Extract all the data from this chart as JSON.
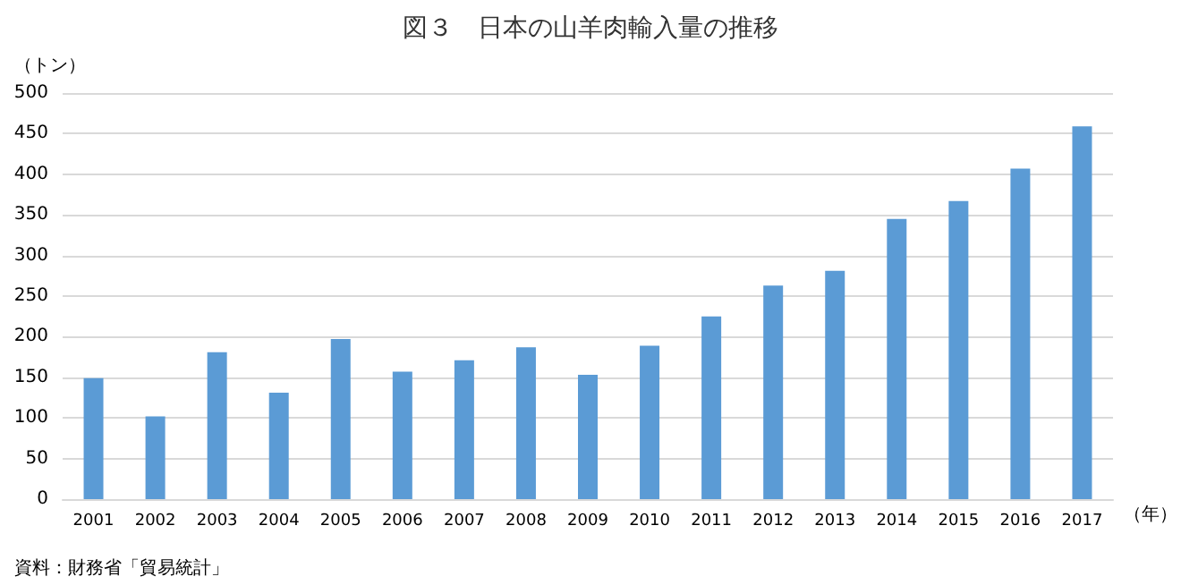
{
  "chart_data": {
    "type": "bar",
    "title": "図３　日本の山羊肉輸入量の推移",
    "ylabel": "（トン）",
    "xlabel": "（年）",
    "categories": [
      "2001",
      "2002",
      "2003",
      "2004",
      "2005",
      "2006",
      "2007",
      "2008",
      "2009",
      "2010",
      "2011",
      "2012",
      "2013",
      "2014",
      "2015",
      "2016",
      "2017"
    ],
    "values": [
      149,
      102,
      181,
      131,
      197,
      157,
      171,
      187,
      153,
      189,
      225,
      263,
      281,
      345,
      367,
      407,
      459
    ],
    "color": "#5b9bd5",
    "ylim": [
      0,
      500
    ],
    "yticks": [
      0,
      50,
      100,
      150,
      200,
      250,
      300,
      350,
      400,
      450,
      500
    ],
    "grid": "y",
    "annotations": [
      "資料：財務省「貿易統計」"
    ]
  }
}
